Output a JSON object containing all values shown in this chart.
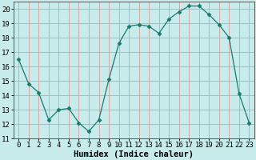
{
  "x": [
    0,
    1,
    2,
    3,
    4,
    5,
    6,
    7,
    8,
    9,
    10,
    11,
    12,
    13,
    14,
    15,
    16,
    17,
    18,
    19,
    20,
    21,
    22,
    23
  ],
  "y": [
    16.5,
    14.8,
    14.2,
    12.3,
    13.0,
    13.1,
    12.1,
    11.5,
    12.3,
    15.1,
    17.6,
    18.8,
    18.9,
    18.8,
    18.3,
    19.3,
    19.8,
    20.2,
    20.2,
    19.6,
    18.9,
    18.0,
    14.1,
    12.1
  ],
  "line_color": "#1a7a6e",
  "marker": "D",
  "marker_size": 2.5,
  "bg_color": "#c8ecec",
  "grid_color": "#d4a0a0",
  "xlabel": "Humidex (Indice chaleur)",
  "xlim": [
    -0.5,
    23.5
  ],
  "ylim": [
    11,
    20.5
  ],
  "yticks": [
    11,
    12,
    13,
    14,
    15,
    16,
    17,
    18,
    19,
    20
  ],
  "xticks": [
    0,
    1,
    2,
    3,
    4,
    5,
    6,
    7,
    8,
    9,
    10,
    11,
    12,
    13,
    14,
    15,
    16,
    17,
    18,
    19,
    20,
    21,
    22,
    23
  ],
  "xlabel_fontsize": 7.5,
  "tick_fontsize": 6.5
}
